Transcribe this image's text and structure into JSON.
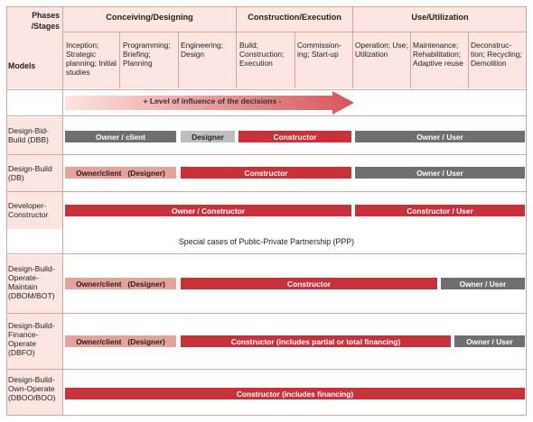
{
  "header": {
    "corner_top": "Phases /Stages",
    "corner_bottom": "Models",
    "phases": [
      {
        "key": "conceiving",
        "label": "Conceiving/Designing"
      },
      {
        "key": "construction",
        "label": "Construction/Execution"
      },
      {
        "key": "use",
        "label": "Use/Utilization"
      }
    ],
    "stages": [
      "Inception; Strategic planning; Initial studies",
      "Programming; Briefing; Planning",
      "Engineering; Design",
      "Build; Construction; Execution",
      "Commission-ing; Start-up",
      "Operation; Use; Utilization",
      "Maintenance; Rehabilitation; Adaptive reuse",
      "Deconstruc-tion; Recycling; Demolition"
    ]
  },
  "influence_label": "+ Level of influence of the decisions -",
  "ppp_label": "Special cases of Public-Private Partnership (PPP)",
  "models": [
    {
      "name": "Design-Bid-Build (DBB)"
    },
    {
      "name": "Design-Build (DB)"
    },
    {
      "name": "Developer-Constructor"
    },
    {
      "name": "Design-Build-Operate-Maintain (DBOM/BOT)"
    },
    {
      "name": "Design-Build-Finance-Operate (DBFO)"
    },
    {
      "name": "Design-Build-Own-Operate (DBOO/BOO)"
    }
  ],
  "bars": {
    "dbb": [
      "Owner / client",
      "Designer",
      "Constructor",
      "Owner / User"
    ],
    "db": [
      "Owner/client   (Designer)",
      "Constructor",
      "Owner / User"
    ],
    "dev": [
      "Owner / Constructor",
      "Constructor / User"
    ],
    "dbom": [
      "Owner/client   (Designer)",
      "Constructor",
      "Owner / User"
    ],
    "dbfo": [
      "Owner/client   (Designer)",
      "Constructor (includes partial or total financing)",
      "Owner / User"
    ],
    "dboo": [
      "Constructor (includes financing)"
    ]
  },
  "colors": {
    "constructor_red": "#c9303a",
    "owner_gray": "#6d6f71",
    "owner_light": "#e8a29a",
    "designer_gray": "#bcbec0",
    "cell_pink": "#fbe5e1"
  }
}
